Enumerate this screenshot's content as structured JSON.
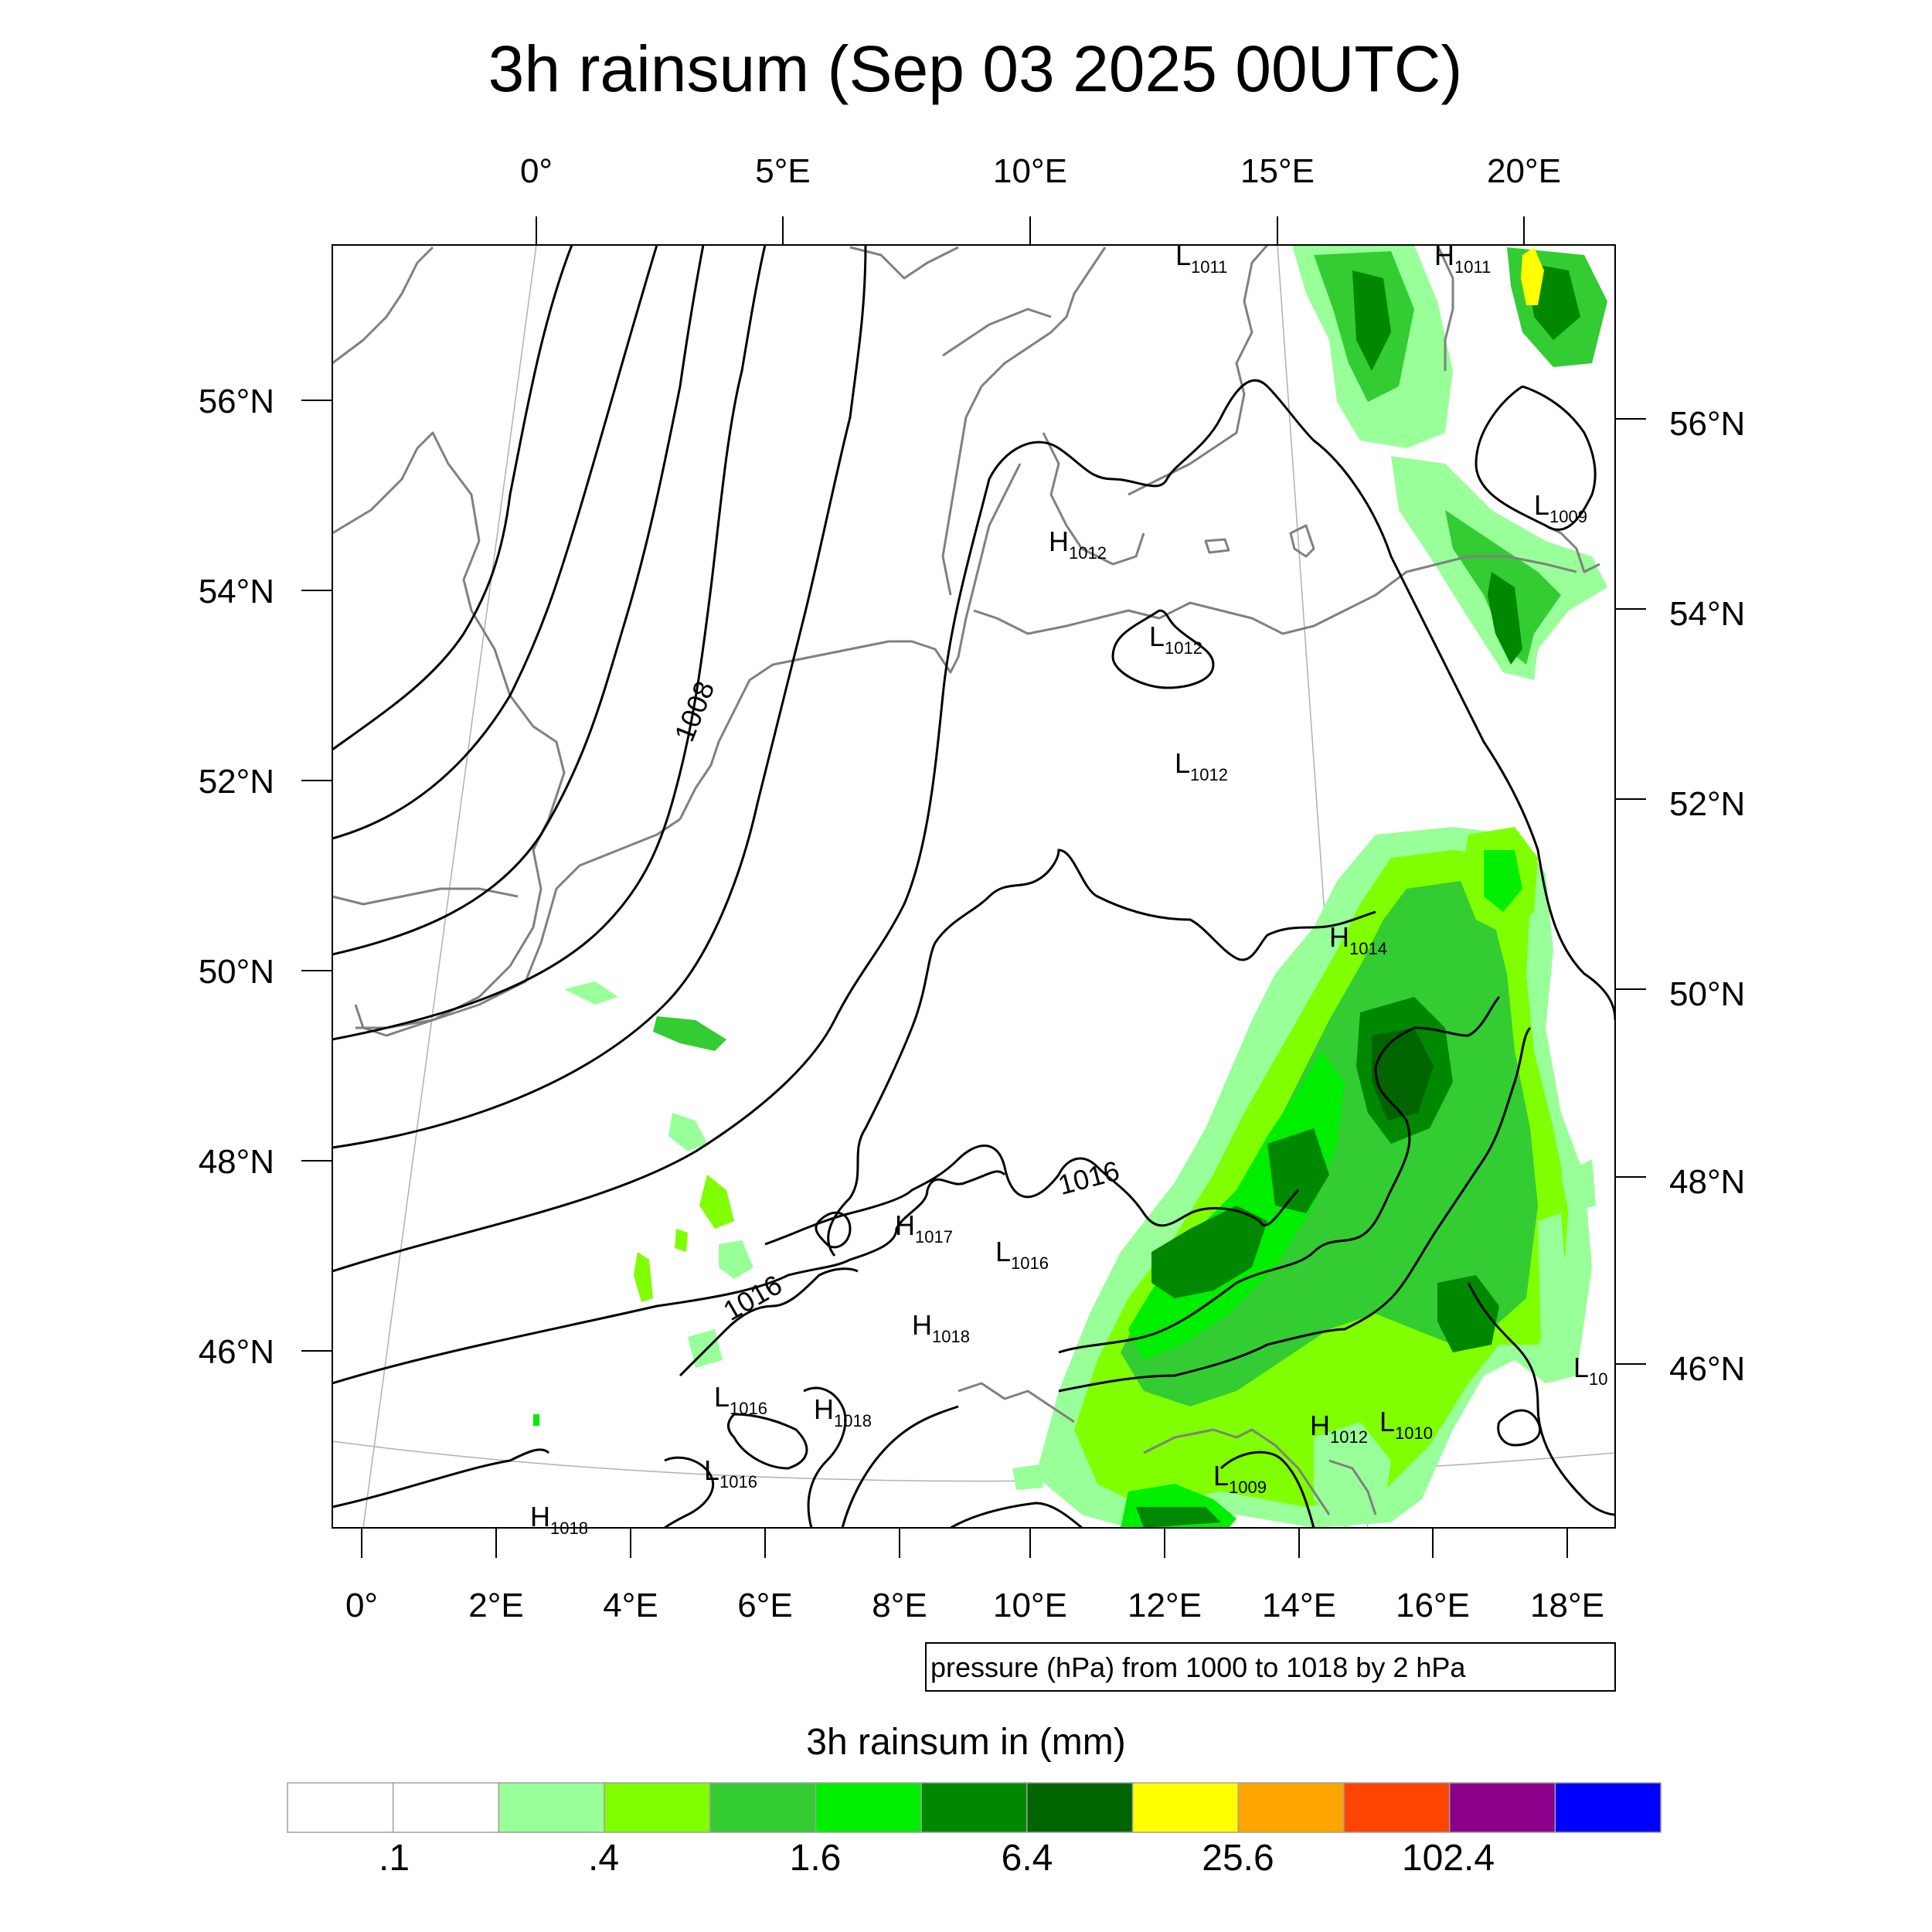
{
  "title": "3h rainsum (Sep 03 2025 00UTC)",
  "top_lon_labels": [
    "0°",
    "5°E",
    "10°E",
    "15°E",
    "20°E"
  ],
  "bottom_lon_labels": [
    "0°",
    "2°E",
    "4°E",
    "6°E",
    "8°E",
    "10°E",
    "12°E",
    "14°E",
    "16°E",
    "18°E"
  ],
  "left_lat_labels": [
    "56°N",
    "54°N",
    "52°N",
    "50°N",
    "48°N",
    "46°N"
  ],
  "right_lat_labels": [
    "56°N",
    "54°N",
    "52°N",
    "50°N",
    "48°N",
    "46°N"
  ],
  "pressure_note": "pressure (hPa) from 1000 to 1018 by 2 hPa",
  "contour_labels": [
    "1008",
    "1016",
    "1016"
  ],
  "pressure_centers": [
    {
      "type": "L",
      "value": "1011"
    },
    {
      "type": "H",
      "value": "1011"
    },
    {
      "type": "H",
      "value": "1012"
    },
    {
      "type": "L",
      "value": "1012"
    },
    {
      "type": "L",
      "value": "1012"
    },
    {
      "type": "L",
      "value": "1009"
    },
    {
      "type": "H",
      "value": "1014"
    },
    {
      "type": "H",
      "value": "1017"
    },
    {
      "type": "L",
      "value": "1016"
    },
    {
      "type": "H",
      "value": "1018"
    },
    {
      "type": "L",
      "value": "1016"
    },
    {
      "type": "H",
      "value": "1018"
    },
    {
      "type": "L",
      "value": "1016"
    },
    {
      "type": "H",
      "value": "1012"
    },
    {
      "type": "L",
      "value": "1010"
    },
    {
      "type": "L",
      "value": "1009"
    },
    {
      "type": "L",
      "value": "10"
    },
    {
      "type": "H",
      "value": "1018"
    }
  ],
  "colorbar": {
    "title": "3h rainsum in (mm)",
    "colors": [
      "#ffffff",
      "#ffffff",
      "#99ff99",
      "#80ff00",
      "#33cc33",
      "#00ee00",
      "#008800",
      "#006400",
      "#ffff00",
      "#ffa500",
      "#ff4500",
      "#8b008b",
      "#0000ff"
    ],
    "labels": [
      ".1",
      ".4",
      "1.6",
      "6.4",
      "25.6",
      "102.4"
    ]
  },
  "palette": {
    "coast": "#808080",
    "isobar": "#000000",
    "rain_light": "#99ff99",
    "rain_yellowgreen": "#80ff00",
    "rain_mid": "#33cc33",
    "rain_bright": "#00ee00",
    "rain_dark": "#008800",
    "rain_darkest": "#006400",
    "rain_yellow": "#ffff00"
  }
}
